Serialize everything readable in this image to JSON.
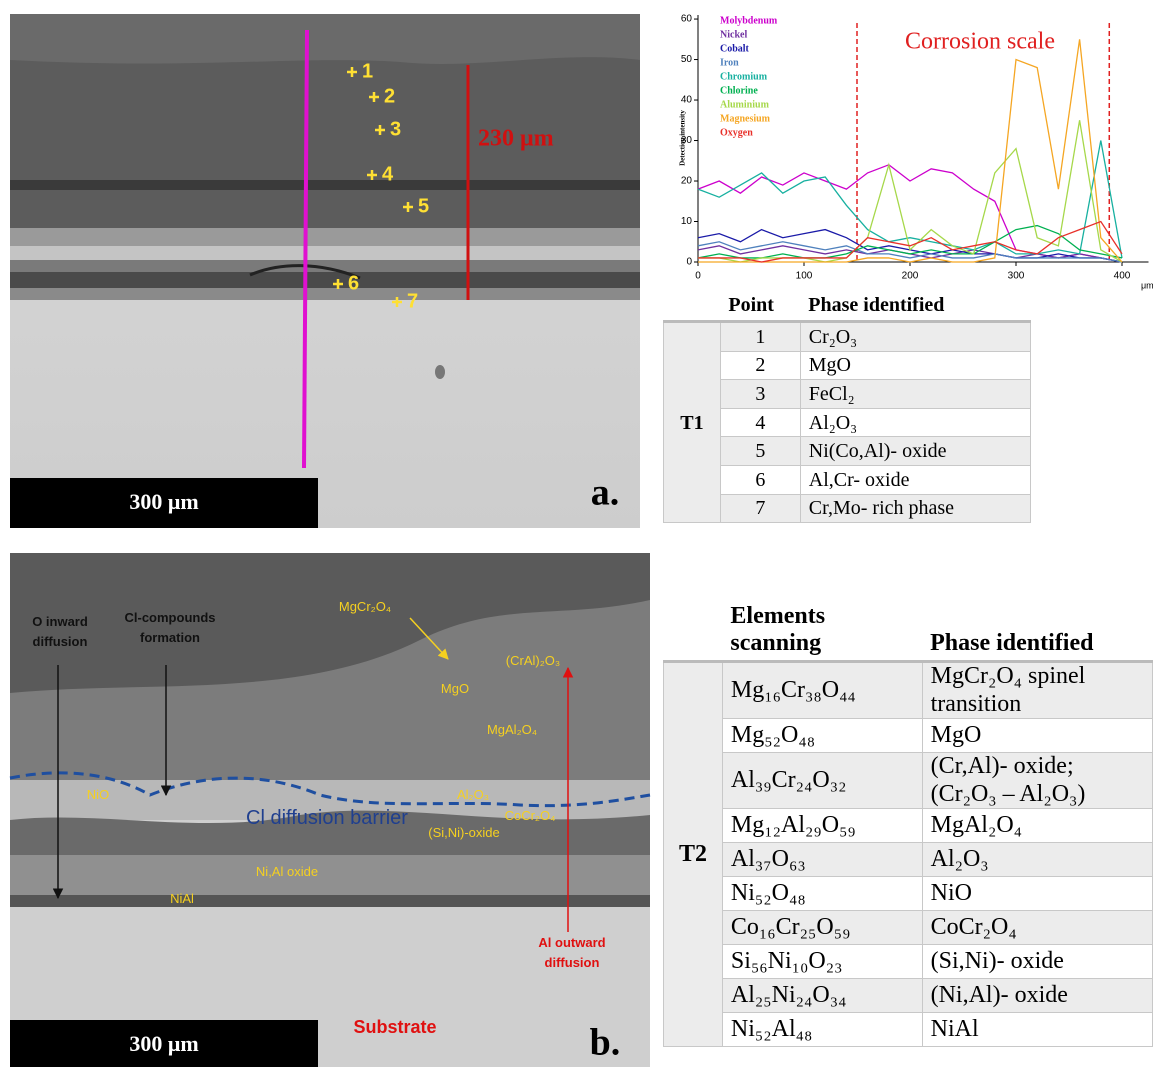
{
  "panel_a": {
    "label": "a.",
    "scale_bar": "300 μm",
    "thickness": "230 μm",
    "points": [
      "1",
      "2",
      "3",
      "4",
      "5",
      "6",
      "7"
    ]
  },
  "chart_data": {
    "type": "line",
    "y_label": "Detection intensity",
    "x_label": "μm",
    "annotation": "Corrosion scale",
    "vlines": [
      150,
      388
    ],
    "x": [
      0,
      20,
      40,
      60,
      80,
      100,
      120,
      140,
      160,
      180,
      200,
      220,
      240,
      260,
      280,
      300,
      320,
      340,
      360,
      380,
      400
    ],
    "xlim": [
      0,
      425
    ],
    "ylim": [
      0,
      61
    ],
    "xticks": [
      0,
      100,
      200,
      300,
      400
    ],
    "yticks": [
      0,
      10,
      20,
      30,
      40,
      50,
      60
    ],
    "series": [
      {
        "name": "Molybdenum",
        "color": "#cc00cc",
        "values": [
          18,
          20,
          17,
          21,
          19,
          22,
          20,
          18,
          22,
          24,
          20,
          23,
          22,
          18,
          15,
          3,
          2,
          1,
          2,
          1,
          0
        ]
      },
      {
        "name": "Nickel",
        "color": "#7030a0",
        "values": [
          3,
          4,
          2,
          3,
          4,
          3,
          2,
          3,
          2,
          3,
          2,
          1,
          2,
          3,
          2,
          1,
          2,
          1,
          2,
          1,
          0
        ]
      },
      {
        "name": "Cobalt",
        "color": "#1a1aa8",
        "values": [
          6,
          7,
          5,
          8,
          6,
          7,
          8,
          6,
          3,
          4,
          3,
          2,
          3,
          2,
          2,
          1,
          1,
          2,
          1,
          1,
          0
        ]
      },
      {
        "name": "Iron",
        "color": "#4f81bd",
        "values": [
          4,
          5,
          3,
          4,
          5,
          4,
          3,
          4,
          2,
          2,
          1,
          2,
          1,
          1,
          2,
          1,
          1,
          1,
          1,
          1,
          0
        ]
      },
      {
        "name": "Chromium",
        "color": "#17b0a0",
        "values": [
          18,
          16,
          19,
          22,
          17,
          20,
          21,
          14,
          8,
          5,
          6,
          5,
          4,
          3,
          5,
          2,
          2,
          3,
          2,
          30,
          1
        ]
      },
      {
        "name": "Chlorine",
        "color": "#00b050",
        "values": [
          1,
          2,
          1,
          1,
          2,
          1,
          1,
          2,
          4,
          3,
          2,
          3,
          2,
          2,
          5,
          8,
          9,
          7,
          3,
          2,
          1
        ]
      },
      {
        "name": "Aluminium",
        "color": "#a6d84a",
        "values": [
          1,
          1,
          0,
          1,
          1,
          1,
          0,
          1,
          6,
          24,
          3,
          8,
          4,
          2,
          22,
          28,
          6,
          4,
          35,
          3,
          0
        ]
      },
      {
        "name": "Magnesium",
        "color": "#f5a623",
        "values": [
          0,
          0,
          0,
          0,
          0,
          0,
          0,
          0,
          1,
          1,
          0,
          1,
          0,
          0,
          1,
          50,
          48,
          18,
          55,
          6,
          0
        ]
      },
      {
        "name": "Oxygen",
        "color": "#e8302a",
        "values": [
          1,
          1,
          1,
          0,
          1,
          1,
          1,
          1,
          6,
          5,
          4,
          6,
          3,
          4,
          5,
          3,
          2,
          6,
          8,
          10,
          2
        ]
      }
    ]
  },
  "table_t1": {
    "group": "T1",
    "headers": [
      "Point",
      "Phase identified"
    ],
    "rows": [
      [
        "1",
        "Cr₂O₃"
      ],
      [
        "2",
        "MgO"
      ],
      [
        "3",
        "FeCl₂"
      ],
      [
        "4",
        "Al₂O₃"
      ],
      [
        "5",
        "Ni(Co,Al)- oxide"
      ],
      [
        "6",
        "Al,Cr- oxide"
      ],
      [
        "7",
        "Cr,Mo- rich phase"
      ]
    ]
  },
  "panel_b": {
    "label": "b.",
    "scale_bar": "300 μm",
    "labels": [
      "O inward diffusion",
      "Cl-compounds formation",
      "MgCr₂O₄",
      "MgO",
      "(CrAl)₂O₃",
      "MgAl₂O₄",
      "NiO",
      "Al₂O₃",
      "CoCr₂O₄",
      "(Si,Ni)-oxide",
      "Cl diffusion barrier",
      "Ni,Al oxide",
      "NiAl",
      "Al outward diffusion",
      "Substrate"
    ]
  },
  "table_t2": {
    "group": "T2",
    "headers": [
      "Elements scanning",
      "Phase identified"
    ],
    "rows": [
      [
        "Mg₁₆Cr₃₈O₄₄",
        "MgCr₂O₄ spinel transition"
      ],
      [
        "Mg₅₂O₄₈",
        "MgO"
      ],
      [
        "Al₃₉Cr₂₄O₃₂",
        "(Cr,Al)- oxide; (Cr₂O₃ – Al₂O₃)"
      ],
      [
        "Mg₁₂Al₂₉O₅₉",
        "MgAl₂O₄"
      ],
      [
        "Al₃₇O₆₃",
        "Al₂O₃"
      ],
      [
        "Ni₅₂O₄₈",
        "NiO"
      ],
      [
        "Co₁₆Cr₂₅O₅₉",
        "CoCr₂O₄"
      ],
      [
        "Si₅₆Ni₁₀O₂₃",
        "(Si,Ni)- oxide"
      ],
      [
        "Al₂₅Ni₂₄O₃₄",
        "(Ni,Al)- oxide"
      ],
      [
        "Ni₅₂Al₄₈",
        "NiAl"
      ]
    ]
  }
}
